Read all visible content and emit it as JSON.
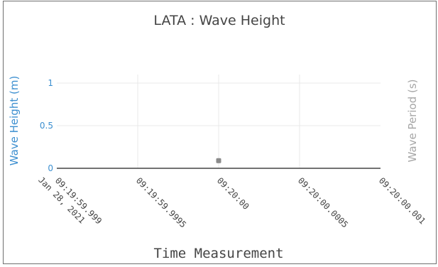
{
  "chart_data": {
    "type": "scatter",
    "title": "LATA : Wave Height",
    "xlabel": "Time Measurement",
    "ylabel": "Wave Height (m)",
    "y2label": "Wave Period (s)",
    "x_ticks": [
      "09:19:59.999|Jan 28, 2021",
      "09:19:59.9995",
      "09:20:00",
      "09:20:00.0005",
      "09:20:00.001"
    ],
    "y_ticks": [
      "0",
      "0.5",
      "1"
    ],
    "x_range": [
      -1,
      1
    ],
    "ylim": [
      0,
      1.1
    ],
    "grid": true,
    "series": [
      {
        "x": [
          0
        ],
        "y": [
          0.09
        ]
      }
    ],
    "colors": {
      "left_axis": "#3c8fd0",
      "right_axis": "#a6a6a6",
      "marker": "#8a8a8a",
      "grid": "#e9e9e9",
      "axis_line": "#444444"
    }
  }
}
